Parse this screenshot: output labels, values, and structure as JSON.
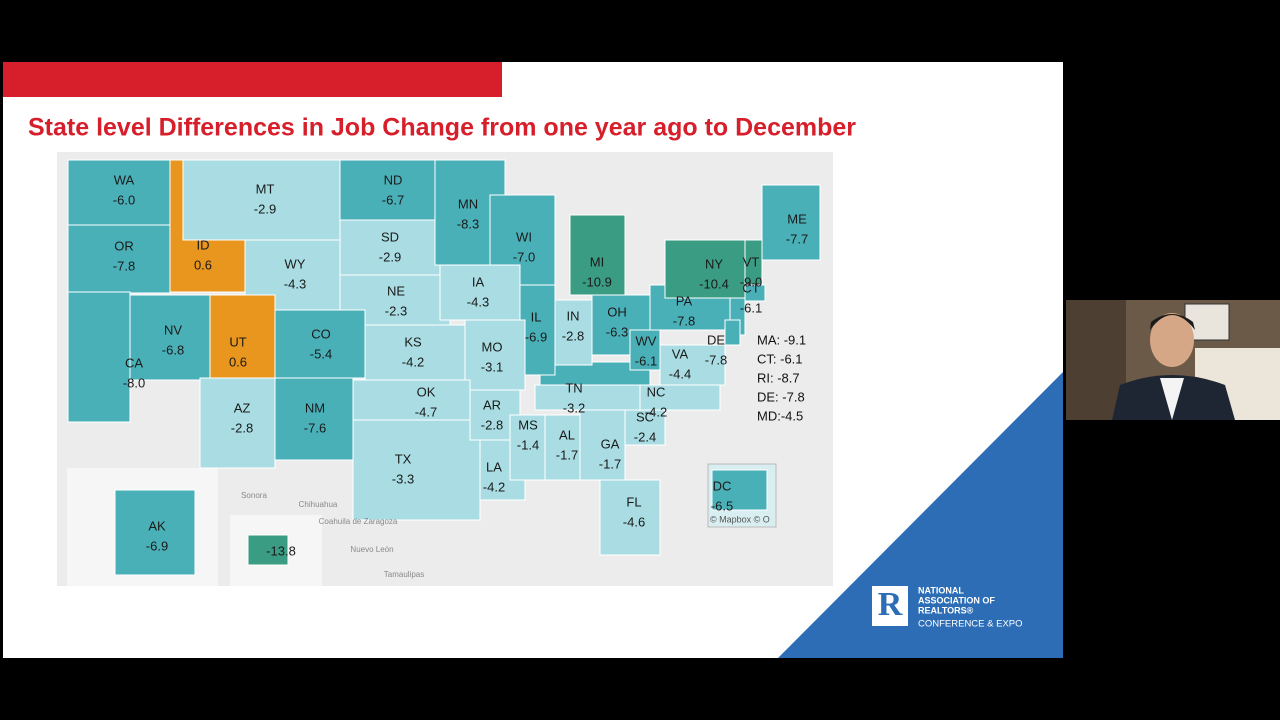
{
  "slide": {
    "title": "State level Differences in Job Change from one year ago to December",
    "map": {
      "states": [
        "WA",
        "OR",
        "ID",
        "MT",
        "WY",
        "ND",
        "SD",
        "NE",
        "MN",
        "WI",
        "MI",
        "IA",
        "IL",
        "IN",
        "OH",
        "PA",
        "NY",
        "VT",
        "ME",
        "CT",
        "CA",
        "NV",
        "UT",
        "CO",
        "KS",
        "MO",
        "AZ",
        "NM",
        "OK",
        "TX",
        "AR",
        "LA",
        "MS",
        "AL",
        "TN",
        "GA",
        "FL",
        "SC",
        "NC",
        "VA",
        "WV",
        "DE",
        "AK",
        null,
        "DC"
      ],
      "values": [
        -6.0,
        -7.8,
        0.6,
        -2.9,
        -4.3,
        -6.7,
        -2.9,
        -2.3,
        -8.3,
        -7.0,
        -10.9,
        -4.3,
        -6.9,
        -2.8,
        -6.3,
        -7.8,
        -10.4,
        -9.0,
        -7.7,
        -6.1,
        -8.0,
        -6.8,
        0.6,
        -5.4,
        -4.2,
        -3.1,
        -2.8,
        -7.6,
        -4.7,
        -3.3,
        -2.8,
        -4.2,
        -1.4,
        -1.7,
        -3.2,
        -1.7,
        -4.6,
        -2.4,
        -4.2,
        -4.4,
        -6.1,
        -7.8,
        -6.9,
        -13.8,
        -6.5
      ],
      "value_labels": [
        "-6.0",
        "-7.8",
        "0.6",
        "-2.9",
        "-4.3",
        "-6.7",
        "-2.9",
        "-2.3",
        "-8.3",
        "-7.0",
        "-10.9",
        "-4.3",
        "-6.9",
        "-2.8",
        "-6.3",
        "-7.8",
        "-10.4",
        "-9.0",
        "-7.7",
        "-6.1",
        "-8.0",
        "-6.8",
        "0.6",
        "-5.4",
        "-4.2",
        "-3.1",
        "-2.8",
        "-7.6",
        "-4.7",
        "-3.3",
        "-2.8",
        "-4.2",
        "-1.4",
        "-1.7",
        "-3.2",
        "-1.7",
        "-4.6",
        "-2.4",
        "-4.2",
        "-4.4",
        "-6.1",
        "-7.8",
        "-6.9",
        "-13.8",
        "-6.5"
      ],
      "notes": [
        "MA: -9.1",
        "CT: -6.1",
        "RI: -8.7",
        "DE: -7.8",
        "MD:-4.5"
      ],
      "basemap_labels": [
        "Sonora",
        "Chihuahua",
        "Coahuila de Zaragoza",
        "Nuevo León",
        "Tamaulipas"
      ],
      "attribution": "© Mapbox © O"
    },
    "logo": [
      "NATIONAL",
      "ASSOCIATION OF",
      "REALTORS®",
      "CONFERENCE & EXPO"
    ]
  }
}
